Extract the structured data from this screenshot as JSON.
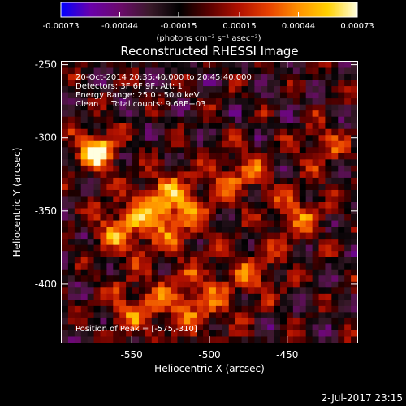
{
  "colorbar": {
    "tick_labels": [
      "-0.00073",
      "-0.00044",
      "-0.00015",
      "0.00015",
      "0.00044",
      "0.00073"
    ],
    "tick_values": [
      -0.00073,
      -0.00044,
      -0.00015,
      0.00015,
      0.00044,
      0.00073
    ],
    "range": [
      -0.00073,
      0.00073
    ],
    "units_label": "(photons cm⁻² s⁻¹ asec⁻²)",
    "colormap": [
      "#0000ff",
      "#6a00aa",
      "#6b0a6b",
      "#3a1a2a",
      "#000000",
      "#5a0000",
      "#b01000",
      "#e84000",
      "#ff9000",
      "#ffd000",
      "#ffffe0"
    ]
  },
  "chart_data": {
    "type": "heatmap",
    "title": "Reconstructed RHESSI Image",
    "xlabel": "Heliocentric X (arcsec)",
    "ylabel": "Heliocentric Y (arcsec)",
    "xlim": [
      -595,
      -405
    ],
    "ylim": [
      -440,
      -248
    ],
    "x_tick_values": [
      -550,
      -500,
      -450
    ],
    "x_tick_labels": [
      "-550",
      "-500",
      "-450"
    ],
    "y_tick_values": [
      -250,
      -300,
      -350,
      -400
    ],
    "y_tick_labels": [
      "-250",
      "-300",
      "-350",
      "-400"
    ],
    "peak": [
      -575,
      -310
    ],
    "info_lines": [
      "20-Oct-2014 20:35:40.000 to 20:45:40.000",
      "Detectors: 3F 6F 9F, Att: 1",
      "Energy Range: 25.0 - 50.0 keV",
      "Clean     Total counts: 9.68E+03"
    ],
    "peak_label": "Position of Peak = [-575,-310]"
  },
  "footer": {
    "timestamp": "2-Jul-2017 23:15"
  }
}
